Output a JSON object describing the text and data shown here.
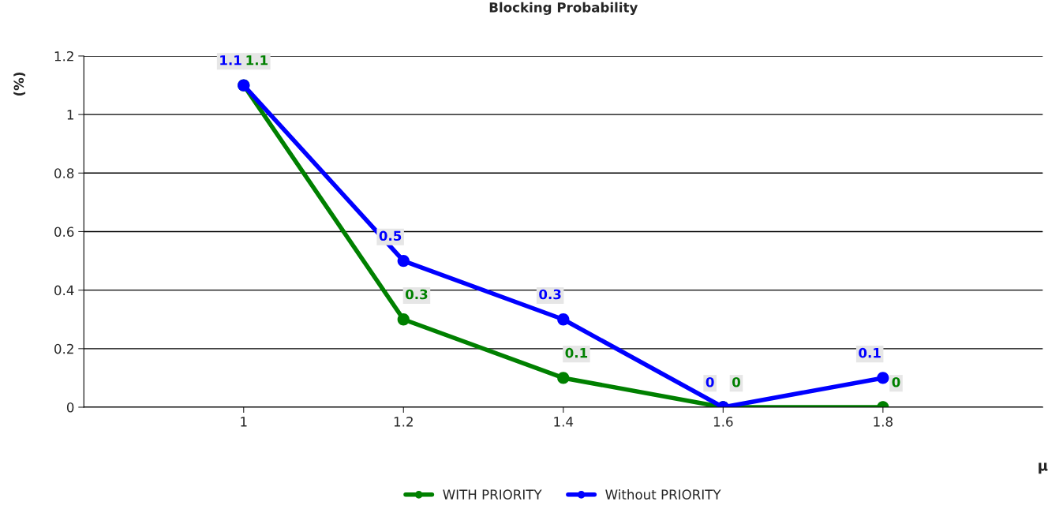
{
  "chart_data": {
    "type": "line",
    "title": "Blocking Probability",
    "xlabel": "μ",
    "ylabel": "(%)",
    "x": [
      1,
      1.2,
      1.4,
      1.6,
      1.8
    ],
    "series": [
      {
        "name": "WITH PRIORITY",
        "color": "#008000",
        "values": [
          1.1,
          0.3,
          0.1,
          0,
          0
        ]
      },
      {
        "name": "Without PRIORITY",
        "color": "#0000ff",
        "values": [
          1.1,
          0.5,
          0.3,
          0,
          0.1
        ]
      }
    ],
    "xlim": [
      0.8,
      2.0
    ],
    "xticks": [
      1,
      1.2,
      1.4,
      1.6,
      1.8
    ],
    "ylim": [
      0,
      1.2
    ],
    "yticks": [
      0,
      0.2,
      0.4,
      0.6,
      0.8,
      1,
      1.2
    ],
    "grid": "y",
    "legend": "bottom",
    "marker": "circle",
    "line_style": "solid",
    "data_labels": true
  }
}
